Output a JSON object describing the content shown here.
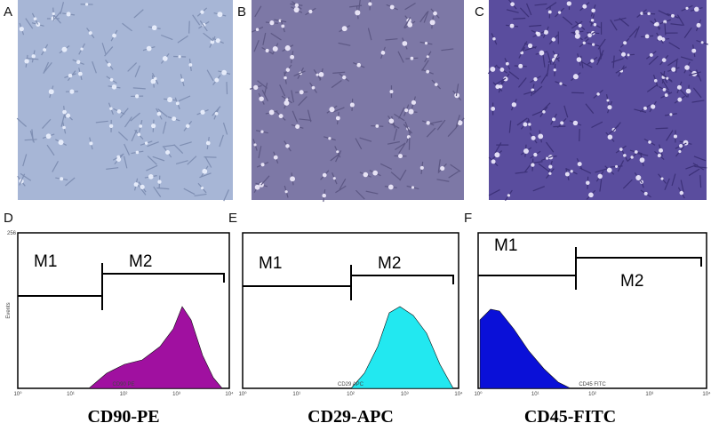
{
  "images": [
    {
      "label": "A"
    },
    {
      "label": "B"
    },
    {
      "label": "C"
    }
  ],
  "histograms": [
    {
      "label": "D",
      "gates": [
        "M1",
        "M2"
      ],
      "x_axis_label": "CD90 PE",
      "y_axis_label": "Events",
      "y_max_label": "256",
      "caption": "CD90-PE"
    },
    {
      "label": "E",
      "gates": [
        "M1",
        "M2"
      ],
      "x_axis_label": "CD29 APC",
      "caption": "CD29-APC"
    },
    {
      "label": "F",
      "gates": [
        "M1",
        "M2"
      ],
      "x_axis_label": "CD45 FITC",
      "caption": "CD45-FITC"
    }
  ],
  "x_tick_labels": [
    "10⁰",
    "10¹",
    "10²",
    "10³",
    "10⁴"
  ]
}
